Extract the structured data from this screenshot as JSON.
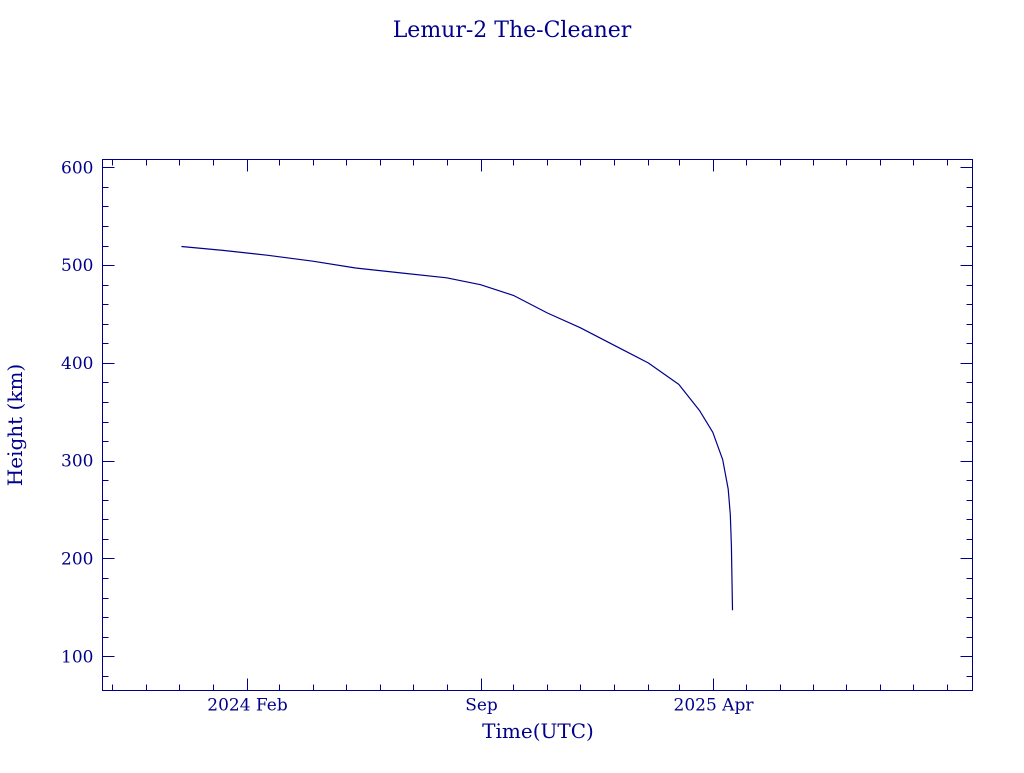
{
  "colors": {
    "ink": "#00008b",
    "background": "#ffffff"
  },
  "chart_data": {
    "type": "line",
    "title": "Lemur-2 The-Cleaner",
    "xlabel": "Time(UTC)",
    "ylabel": "Height (km)",
    "xlim": [
      "2023-09-22",
      "2025-11-24"
    ],
    "ylim": [
      65,
      608
    ],
    "x_ticks": [
      {
        "date": "2024-02-01",
        "label": "2024 Feb"
      },
      {
        "date": "2024-09-01",
        "label": "Sep"
      },
      {
        "date": "2025-04-01",
        "label": "2025 Apr"
      }
    ],
    "x_minor_ticks": [
      "2023-10-01",
      "2023-11-01",
      "2023-12-01",
      "2024-01-01",
      "2024-03-01",
      "2024-04-01",
      "2024-05-01",
      "2024-06-01",
      "2024-07-01",
      "2024-08-01",
      "2024-10-01",
      "2024-11-01",
      "2024-12-01",
      "2025-01-01",
      "2025-02-01",
      "2025-03-01",
      "2025-05-01",
      "2025-06-01",
      "2025-07-01",
      "2025-08-01",
      "2025-09-01",
      "2025-10-01",
      "2025-11-01"
    ],
    "y_ticks": [
      100,
      200,
      300,
      400,
      500,
      600
    ],
    "y_minor_step": 20,
    "grid": false,
    "series": [
      {
        "points": [
          {
            "x": "2023-12-03",
            "y": 519
          },
          {
            "x": "2024-01-10",
            "y": 515
          },
          {
            "x": "2024-02-20",
            "y": 510
          },
          {
            "x": "2024-04-01",
            "y": 504
          },
          {
            "x": "2024-05-10",
            "y": 497
          },
          {
            "x": "2024-06-20",
            "y": 492
          },
          {
            "x": "2024-08-01",
            "y": 487
          },
          {
            "x": "2024-09-01",
            "y": 480
          },
          {
            "x": "2024-10-01",
            "y": 469
          },
          {
            "x": "2024-11-01",
            "y": 451
          },
          {
            "x": "2024-12-01",
            "y": 436
          },
          {
            "x": "2025-01-01",
            "y": 418
          },
          {
            "x": "2025-02-01",
            "y": 400
          },
          {
            "x": "2025-03-01",
            "y": 378
          },
          {
            "x": "2025-03-20",
            "y": 351
          },
          {
            "x": "2025-04-01",
            "y": 329
          },
          {
            "x": "2025-04-10",
            "y": 301
          },
          {
            "x": "2025-04-15",
            "y": 271
          },
          {
            "x": "2025-04-17",
            "y": 245
          },
          {
            "x": "2025-04-18",
            "y": 213
          },
          {
            "x": "2025-04-19",
            "y": 147
          }
        ]
      }
    ]
  }
}
